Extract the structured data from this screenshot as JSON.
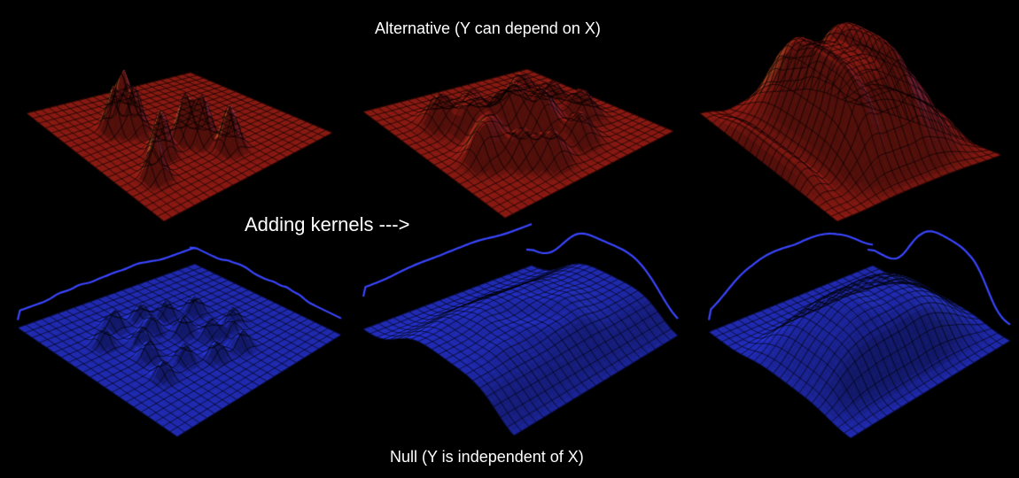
{
  "captions": {
    "alternative": "Alternative (Y can depend on X)",
    "adding_kernels": "Adding kernels --->",
    "null": "Null (Y is independent of X)"
  },
  "colors": {
    "background": "#000000",
    "alternative_surface": "#c0281c",
    "alternative_highlight": "#ffd24a",
    "alternative_glow": "#e070e0",
    "null_surface": "#2e3cf0",
    "null_highlight": "#6fd0ff",
    "marginal_curve": "#3a46ff",
    "mesh_lines": "#000000"
  },
  "panels": [
    {
      "row": "alternative",
      "stage": "narrow kernels",
      "surface_color": "red"
    },
    {
      "row": "alternative",
      "stage": "medium kernels",
      "surface_color": "red"
    },
    {
      "row": "alternative",
      "stage": "wide kernels",
      "surface_color": "red"
    },
    {
      "row": "null",
      "stage": "narrow kernels",
      "surface_color": "blue"
    },
    {
      "row": "null",
      "stage": "medium kernels",
      "surface_color": "blue"
    },
    {
      "row": "null",
      "stage": "wide kernels",
      "surface_color": "blue"
    }
  ]
}
